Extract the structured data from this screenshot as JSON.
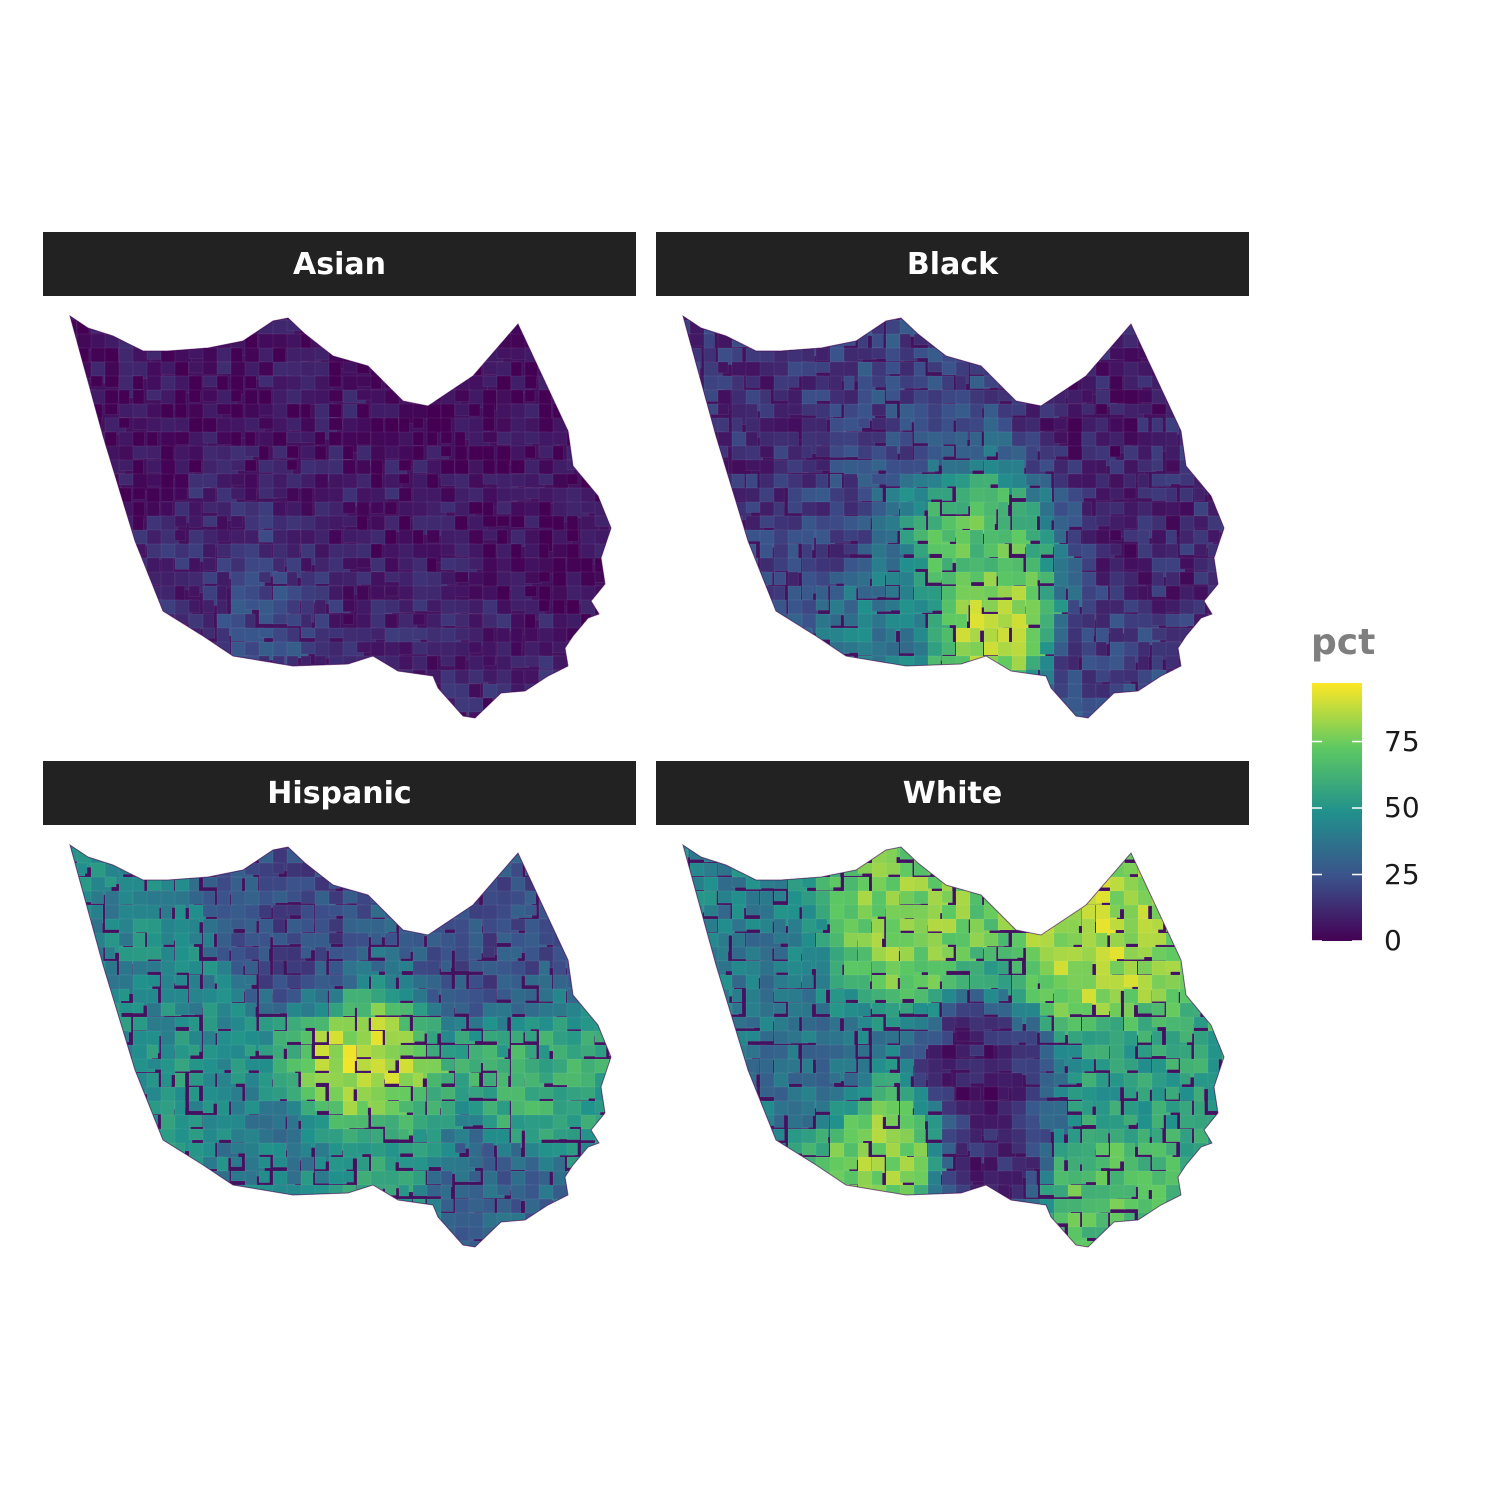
{
  "panels": [
    {
      "strip": "Asian",
      "palette_bias": "low",
      "regions": [
        {
          "zone": "northwest",
          "pct": 3
        },
        {
          "zone": "north",
          "pct": 4
        },
        {
          "zone": "northeast",
          "pct": 2
        },
        {
          "zone": "west",
          "pct": 12
        },
        {
          "zone": "center",
          "pct": 7
        },
        {
          "zone": "east",
          "pct": 3
        },
        {
          "zone": "southwest",
          "pct": 22
        },
        {
          "zone": "south",
          "pct": 9
        },
        {
          "zone": "southeast",
          "pct": 10
        }
      ]
    },
    {
      "strip": "Black",
      "palette_bias": "mixed",
      "regions": [
        {
          "zone": "northwest",
          "pct": 12
        },
        {
          "zone": "north",
          "pct": 20
        },
        {
          "zone": "northeast",
          "pct": 8
        },
        {
          "zone": "west",
          "pct": 18
        },
        {
          "zone": "center",
          "pct": 70
        },
        {
          "zone": "east",
          "pct": 10
        },
        {
          "zone": "southwest",
          "pct": 40
        },
        {
          "zone": "south",
          "pct": 85
        },
        {
          "zone": "southeast",
          "pct": 18
        }
      ]
    },
    {
      "strip": "Hispanic",
      "palette_bias": "mixed",
      "regions": [
        {
          "zone": "northwest",
          "pct": 45
        },
        {
          "zone": "north",
          "pct": 20
        },
        {
          "zone": "northeast",
          "pct": 22
        },
        {
          "zone": "west",
          "pct": 50
        },
        {
          "zone": "center",
          "pct": 88
        },
        {
          "zone": "east",
          "pct": 60
        },
        {
          "zone": "southwest",
          "pct": 40
        },
        {
          "zone": "south",
          "pct": 55
        },
        {
          "zone": "southeast",
          "pct": 30
        }
      ]
    },
    {
      "strip": "White",
      "palette_bias": "mixed",
      "regions": [
        {
          "zone": "northwest",
          "pct": 40
        },
        {
          "zone": "north",
          "pct": 78
        },
        {
          "zone": "northeast",
          "pct": 85
        },
        {
          "zone": "west",
          "pct": 35
        },
        {
          "zone": "center",
          "pct": 8
        },
        {
          "zone": "east",
          "pct": 55
        },
        {
          "zone": "southwest",
          "pct": 80
        },
        {
          "zone": "south",
          "pct": 10
        },
        {
          "zone": "southeast",
          "pct": 70
        }
      ]
    }
  ],
  "legend": {
    "title": "pct",
    "ticks": [
      "0",
      "25",
      "50",
      "75"
    ],
    "tick_values": [
      0,
      25,
      50,
      75
    ],
    "range": [
      0,
      97
    ],
    "palette": [
      "#440154",
      "#3b528b",
      "#21918c",
      "#5ec962",
      "#fde725"
    ]
  }
}
